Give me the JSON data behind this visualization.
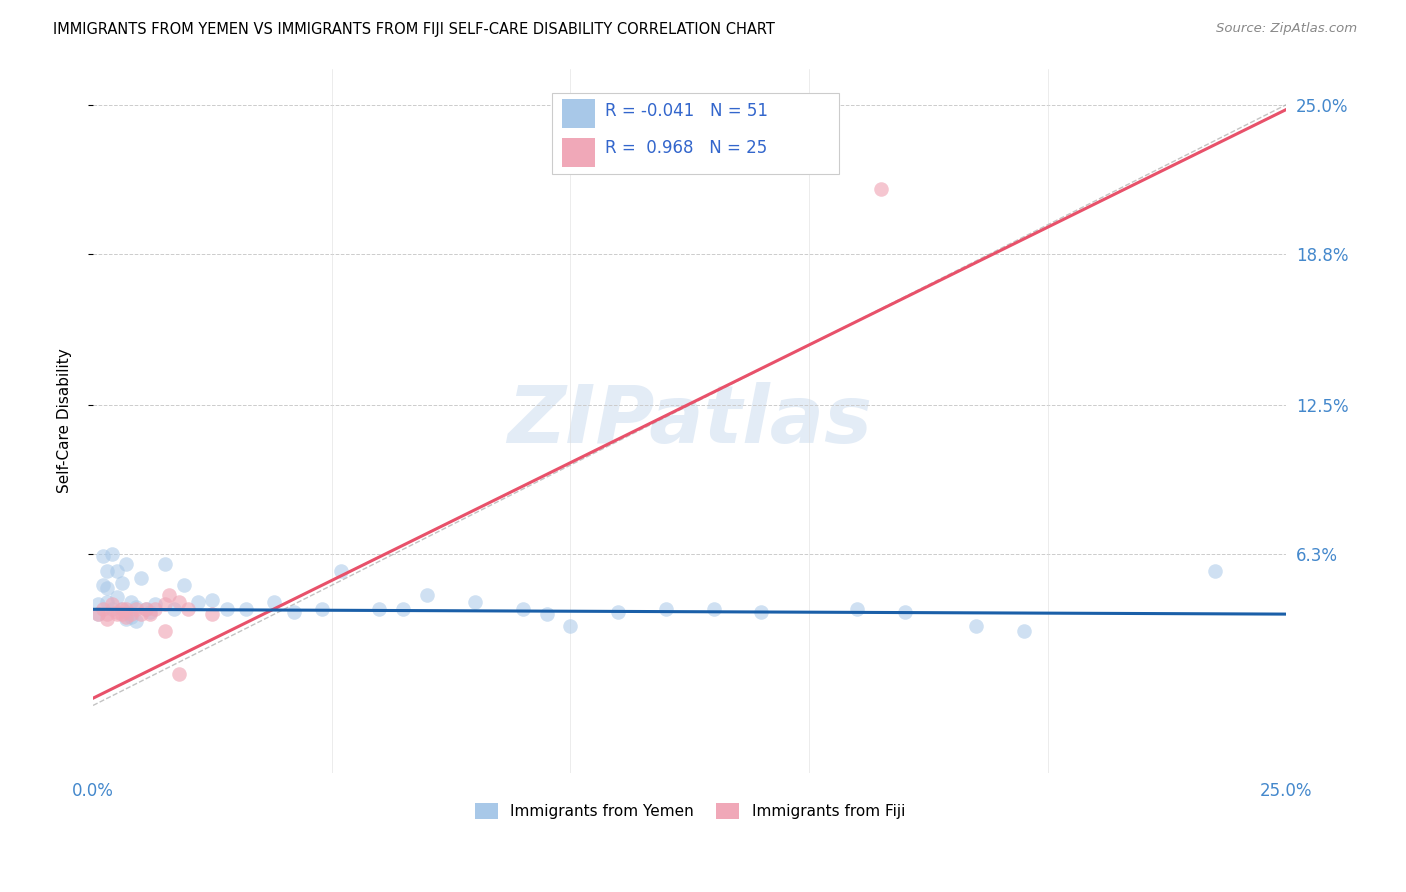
{
  "title": "IMMIGRANTS FROM YEMEN VS IMMIGRANTS FROM FIJI SELF-CARE DISABILITY CORRELATION CHART",
  "source": "Source: ZipAtlas.com",
  "ylabel_label": "Self-Care Disability",
  "legend_labels": [
    "Immigrants from Yemen",
    "Immigrants from Fiji"
  ],
  "yemen_R": -0.041,
  "yemen_N": 51,
  "fiji_R": 0.968,
  "fiji_N": 25,
  "yemen_color": "#a8c8e8",
  "fiji_color": "#f0a8b8",
  "yemen_line_color": "#1a5fa8",
  "fiji_line_color": "#e8516a",
  "watermark_text": "ZIPatlas",
  "xmin": 0.0,
  "xmax": 0.25,
  "ymin": -0.028,
  "ymax": 0.265,
  "yticks": [
    0.063,
    0.125,
    0.188,
    0.25
  ],
  "ytick_labels": [
    "6.3%",
    "12.5%",
    "18.8%",
    "25.0%"
  ],
  "xticks": [
    0.0,
    0.05,
    0.1,
    0.15,
    0.2,
    0.25
  ],
  "xtick_labels": [
    "0.0%",
    "",
    "",
    "",
    "",
    "25.0%"
  ],
  "yemen_x": [
    0.001,
    0.001,
    0.002,
    0.002,
    0.003,
    0.003,
    0.003,
    0.004,
    0.004,
    0.005,
    0.005,
    0.006,
    0.006,
    0.007,
    0.007,
    0.007,
    0.008,
    0.008,
    0.009,
    0.009,
    0.01,
    0.011,
    0.012,
    0.013,
    0.015,
    0.017,
    0.019,
    0.022,
    0.025,
    0.028,
    0.032,
    0.038,
    0.042,
    0.048,
    0.052,
    0.06,
    0.065,
    0.07,
    0.08,
    0.09,
    0.095,
    0.1,
    0.11,
    0.12,
    0.13,
    0.14,
    0.16,
    0.17,
    0.185,
    0.195,
    0.235
  ],
  "yemen_y": [
    0.042,
    0.038,
    0.062,
    0.05,
    0.056,
    0.049,
    0.043,
    0.063,
    0.04,
    0.056,
    0.045,
    0.051,
    0.04,
    0.059,
    0.039,
    0.036,
    0.043,
    0.037,
    0.041,
    0.035,
    0.053,
    0.04,
    0.039,
    0.042,
    0.059,
    0.04,
    0.05,
    0.043,
    0.044,
    0.04,
    0.04,
    0.043,
    0.039,
    0.04,
    0.056,
    0.04,
    0.04,
    0.046,
    0.043,
    0.04,
    0.038,
    0.033,
    0.039,
    0.04,
    0.04,
    0.039,
    0.04,
    0.039,
    0.033,
    0.031,
    0.056
  ],
  "fiji_x": [
    0.001,
    0.002,
    0.003,
    0.003,
    0.004,
    0.005,
    0.005,
    0.006,
    0.006,
    0.007,
    0.007,
    0.008,
    0.009,
    0.01,
    0.011,
    0.012,
    0.013,
    0.015,
    0.016,
    0.018,
    0.02,
    0.025,
    0.015,
    0.018,
    0.165
  ],
  "fiji_y": [
    0.038,
    0.04,
    0.038,
    0.036,
    0.042,
    0.039,
    0.038,
    0.04,
    0.038,
    0.04,
    0.037,
    0.038,
    0.04,
    0.038,
    0.04,
    0.038,
    0.04,
    0.042,
    0.046,
    0.043,
    0.04,
    0.038,
    0.031,
    0.013,
    0.215
  ],
  "fiji_trend_x0": 0.0,
  "fiji_trend_y0": 0.003,
  "fiji_trend_x1": 0.25,
  "fiji_trend_y1": 0.248,
  "yemen_trend_x0": 0.0,
  "yemen_trend_y0": 0.04,
  "yemen_trend_x1": 0.25,
  "yemen_trend_y1": 0.038
}
